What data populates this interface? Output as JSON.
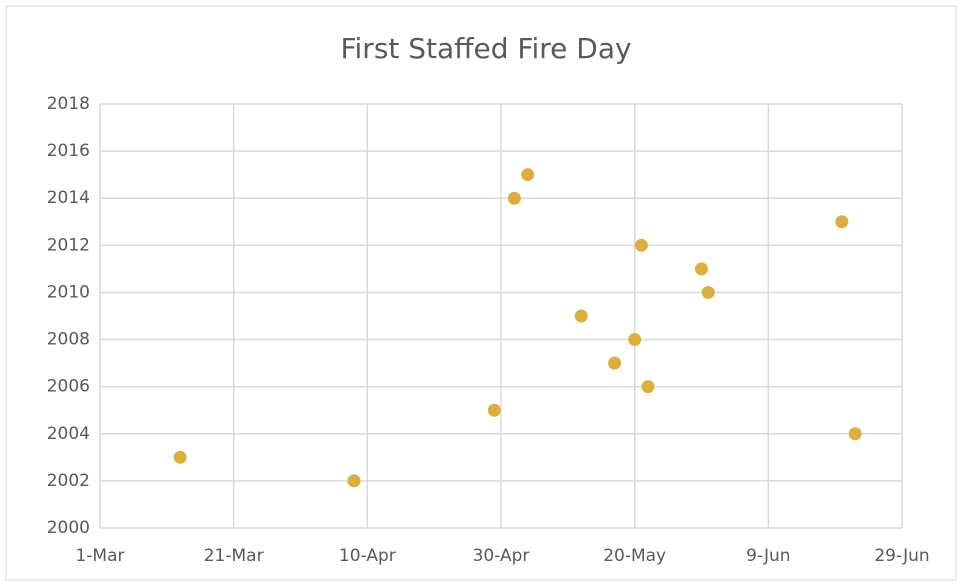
{
  "chart_data": {
    "type": "scatter",
    "title": "First Staffed Fire Day",
    "x": [
      "8-Apr",
      "13-Mar",
      "22-Jun",
      "29-Apr",
      "22-May",
      "17-May",
      "20-May",
      "12-May",
      "31-May",
      "30-May",
      "21-May",
      "20-Jun",
      "2-May",
      "4-May"
    ],
    "values": [
      2002,
      2003,
      2004,
      2005,
      2006,
      2007,
      2008,
      2009,
      2010,
      2011,
      2012,
      2013,
      2014,
      2015
    ],
    "color": "#ddae3b",
    "xlim": [
      "1-Mar",
      "29-Jun"
    ],
    "xticks": [
      "1-Mar",
      "21-Mar",
      "10-Apr",
      "30-Apr",
      "20-May",
      "9-Jun",
      "29-Jun"
    ],
    "ylim": [
      2000,
      2018
    ],
    "yticks": [
      2000,
      2002,
      2004,
      2006,
      2008,
      2010,
      2012,
      2014,
      2016,
      2018
    ],
    "grid": true
  }
}
